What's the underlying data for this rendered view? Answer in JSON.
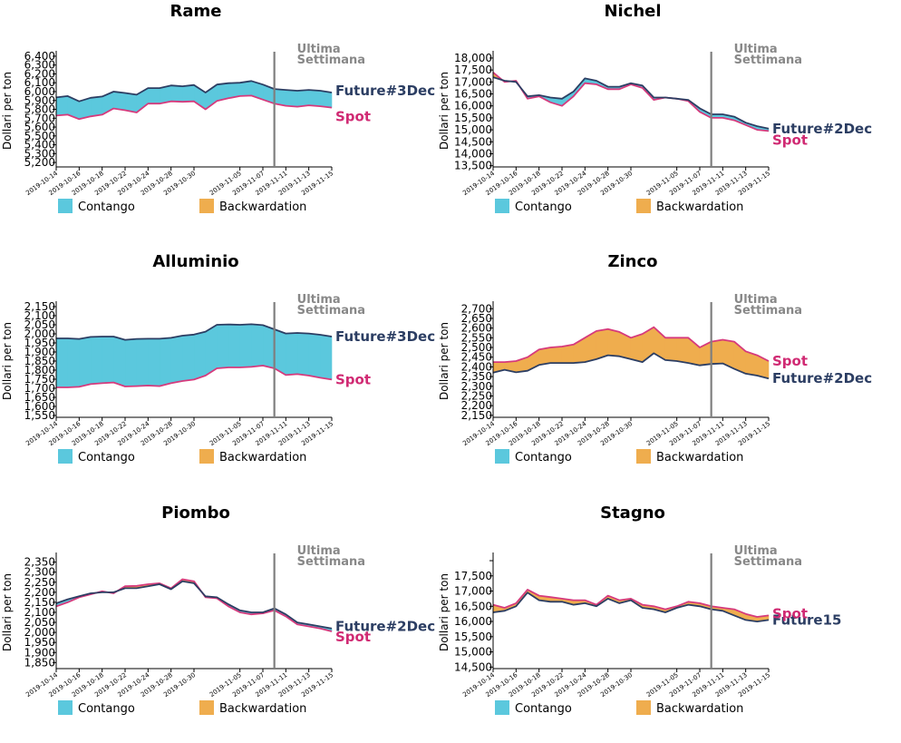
{
  "colors": {
    "contango": "#5bc8dd",
    "backwardation": "#efad4e",
    "future_line": "#2c3e63",
    "spot_line": "#d63a7c",
    "future_label": "#2c3e63",
    "spot_label": "#d02a73",
    "marker": "#7f7f7f",
    "annotation": "#888888"
  },
  "legend": {
    "contango": "Contango",
    "backwardation": "Backwardation"
  },
  "annotation": {
    "line1": "Ultima",
    "line2": "Settimana"
  },
  "chart_data": [
    {
      "type": "area",
      "title": "Rame",
      "ylabel": "Dollari per ton",
      "ylim": [
        5150,
        6420
      ],
      "yticks": [
        5200,
        5300,
        5400,
        5500,
        5600,
        5700,
        5800,
        5900,
        6000,
        6100,
        6200,
        6300,
        6400
      ],
      "ytick_labels": [
        "5,200",
        "5,300",
        "5,400",
        "5,500",
        "5,600",
        "5,700",
        "5,800",
        "5,900",
        "6,000",
        "6,100",
        "6,200",
        "6,300",
        "6,400"
      ],
      "x": [
        "2019-10-14",
        "2019-10-15",
        "2019-10-16",
        "2019-10-17",
        "2019-10-18",
        "2019-10-21",
        "2019-10-22",
        "2019-10-23",
        "2019-10-24",
        "2019-10-25",
        "2019-10-28",
        "2019-10-29",
        "2019-10-30",
        "2019-10-31",
        "2019-11-01",
        "2019-11-04",
        "2019-11-05",
        "2019-11-06",
        "2019-11-07",
        "2019-11-08",
        "2019-11-11",
        "2019-11-12",
        "2019-11-13",
        "2019-11-14",
        "2019-11-15"
      ],
      "xtick_labels": [
        "2019-10-14",
        "2019-10-16",
        "2019-10-18",
        "2019-10-22",
        "2019-10-24",
        "2019-10-28",
        "2019-10-30",
        "2019-11-05",
        "2019-11-07",
        "2019-11-11",
        "2019-11-13",
        "2019-11-15"
      ],
      "marker_x": "2019-11-08",
      "series": [
        {
          "name": "Future#3Dec",
          "role": "future",
          "values": [
            5935,
            5950,
            5890,
            5930,
            5945,
            6000,
            5985,
            5965,
            6040,
            6040,
            6070,
            6060,
            6075,
            5990,
            6080,
            6095,
            6100,
            6120,
            6080,
            6030,
            6020,
            6010,
            6020,
            6010,
            5990
          ]
        },
        {
          "name": "Spot",
          "role": "spot",
          "values": [
            5730,
            5740,
            5690,
            5720,
            5740,
            5810,
            5790,
            5765,
            5865,
            5865,
            5890,
            5885,
            5890,
            5800,
            5895,
            5925,
            5950,
            5955,
            5910,
            5865,
            5840,
            5830,
            5845,
            5835,
            5820
          ]
        }
      ]
    },
    {
      "type": "area",
      "title": "Nichel",
      "ylabel": "Dollari per ton",
      "ylim": [
        13450,
        18150
      ],
      "yticks": [
        13500,
        14000,
        14500,
        15000,
        15500,
        16000,
        16500,
        17000,
        17500,
        18000
      ],
      "ytick_labels": [
        "13,500",
        "14,000",
        "14,500",
        "15,000",
        "15,500",
        "16,000",
        "16,500",
        "17,000",
        "17,500",
        "18,000"
      ],
      "x": [
        "2019-10-14",
        "2019-10-15",
        "2019-10-16",
        "2019-10-17",
        "2019-10-18",
        "2019-10-21",
        "2019-10-22",
        "2019-10-23",
        "2019-10-24",
        "2019-10-25",
        "2019-10-28",
        "2019-10-29",
        "2019-10-30",
        "2019-10-31",
        "2019-11-01",
        "2019-11-04",
        "2019-11-05",
        "2019-11-06",
        "2019-11-07",
        "2019-11-08",
        "2019-11-11",
        "2019-11-12",
        "2019-11-13",
        "2019-11-14",
        "2019-11-15"
      ],
      "xtick_labels": [
        "2019-10-14",
        "2019-10-16",
        "2019-10-18",
        "2019-10-22",
        "2019-10-24",
        "2019-10-28",
        "2019-10-30",
        "2019-11-05",
        "2019-11-07",
        "2019-11-11",
        "2019-11-13",
        "2019-11-15"
      ],
      "marker_x": "2019-11-08",
      "series": [
        {
          "name": "Future#2Dec",
          "role": "future",
          "values": [
            17200,
            17050,
            17000,
            16400,
            16450,
            16350,
            16300,
            16600,
            17150,
            17050,
            16800,
            16800,
            16950,
            16850,
            16350,
            16350,
            16300,
            16250,
            15900,
            15650,
            15650,
            15550,
            15300,
            15150,
            15050
          ]
        },
        {
          "name": "Spot",
          "role": "spot",
          "values": [
            17400,
            17000,
            17050,
            16300,
            16400,
            16150,
            16000,
            16400,
            16950,
            16900,
            16700,
            16700,
            16900,
            16750,
            16250,
            16350,
            16300,
            16200,
            15750,
            15500,
            15500,
            15400,
            15200,
            15000,
            14950
          ]
        }
      ]
    },
    {
      "type": "area",
      "title": "Alluminio",
      "ylabel": "Dollari per ton",
      "ylim": [
        1540,
        2160
      ],
      "yticks": [
        1550,
        1600,
        1650,
        1700,
        1750,
        1800,
        1850,
        1900,
        1950,
        2000,
        2050,
        2100,
        2150
      ],
      "ytick_labels": [
        "1,550",
        "1,600",
        "1,650",
        "1,700",
        "1,750",
        "1,800",
        "1,850",
        "1,900",
        "1,950",
        "2,000",
        "2,050",
        "2,100",
        "2,150"
      ],
      "x": [
        "2019-10-14",
        "2019-10-15",
        "2019-10-16",
        "2019-10-17",
        "2019-10-18",
        "2019-10-21",
        "2019-10-22",
        "2019-10-23",
        "2019-10-24",
        "2019-10-25",
        "2019-10-28",
        "2019-10-29",
        "2019-10-30",
        "2019-10-31",
        "2019-11-01",
        "2019-11-04",
        "2019-11-05",
        "2019-11-06",
        "2019-11-07",
        "2019-11-08",
        "2019-11-11",
        "2019-11-12",
        "2019-11-13",
        "2019-11-14",
        "2019-11-15"
      ],
      "xtick_labels": [
        "2019-10-14",
        "2019-10-16",
        "2019-10-18",
        "2019-10-22",
        "2019-10-24",
        "2019-10-28",
        "2019-10-30",
        "2019-11-05",
        "2019-11-07",
        "2019-11-11",
        "2019-11-13",
        "2019-11-15"
      ],
      "marker_x": "2019-11-08",
      "series": [
        {
          "name": "Future#3Dec",
          "role": "future",
          "values": [
            1975,
            1975,
            1972,
            1983,
            1985,
            1985,
            1967,
            1972,
            1973,
            1973,
            1978,
            1990,
            1996,
            2012,
            2050,
            2052,
            2050,
            2053,
            2048,
            2025,
            2002,
            2005,
            2002,
            1995,
            1985
          ]
        },
        {
          "name": "Spot",
          "role": "spot",
          "values": [
            1705,
            1705,
            1708,
            1723,
            1728,
            1732,
            1710,
            1712,
            1715,
            1712,
            1728,
            1740,
            1748,
            1770,
            1810,
            1815,
            1815,
            1818,
            1825,
            1810,
            1773,
            1778,
            1770,
            1758,
            1748
          ]
        }
      ]
    },
    {
      "type": "area",
      "title": "Zinco",
      "ylabel": "Dollari per ton",
      "ylim": [
        2140,
        2720
      ],
      "yticks": [
        2150,
        2200,
        2250,
        2300,
        2350,
        2400,
        2450,
        2500,
        2550,
        2600,
        2650,
        2700
      ],
      "ytick_labels": [
        "2,150",
        "2,200",
        "2,250",
        "2,300",
        "2,350",
        "2,400",
        "2,450",
        "2,500",
        "2,550",
        "2,600",
        "2,650",
        "2,700"
      ],
      "x": [
        "2019-10-14",
        "2019-10-15",
        "2019-10-16",
        "2019-10-17",
        "2019-10-18",
        "2019-10-21",
        "2019-10-22",
        "2019-10-23",
        "2019-10-24",
        "2019-10-25",
        "2019-10-28",
        "2019-10-29",
        "2019-10-30",
        "2019-10-31",
        "2019-11-01",
        "2019-11-04",
        "2019-11-05",
        "2019-11-06",
        "2019-11-07",
        "2019-11-08",
        "2019-11-11",
        "2019-11-12",
        "2019-11-13",
        "2019-11-14",
        "2019-11-15"
      ],
      "xtick_labels": [
        "2019-10-14",
        "2019-10-16",
        "2019-10-18",
        "2019-10-22",
        "2019-10-24",
        "2019-10-28",
        "2019-10-30",
        "2019-11-05",
        "2019-11-07",
        "2019-11-11",
        "2019-11-13",
        "2019-11-15"
      ],
      "marker_x": "2019-11-08",
      "series": [
        {
          "name": "Future#2Dec",
          "role": "future",
          "values": [
            2370,
            2385,
            2372,
            2380,
            2410,
            2420,
            2420,
            2420,
            2425,
            2440,
            2460,
            2455,
            2440,
            2425,
            2470,
            2435,
            2430,
            2420,
            2408,
            2415,
            2418,
            2390,
            2365,
            2355,
            2340
          ]
        },
        {
          "name": "Spot",
          "role": "spot",
          "values": [
            2425,
            2425,
            2430,
            2450,
            2490,
            2500,
            2505,
            2515,
            2550,
            2585,
            2595,
            2580,
            2550,
            2570,
            2605,
            2550,
            2550,
            2550,
            2500,
            2530,
            2540,
            2530,
            2480,
            2460,
            2430
          ]
        }
      ]
    },
    {
      "type": "area",
      "title": "Piombo",
      "ylabel": "Dollari per ton",
      "ylim": [
        1820,
        2380
      ],
      "yticks": [
        1850,
        1900,
        1950,
        2000,
        2050,
        2100,
        2150,
        2200,
        2250,
        2300,
        2350
      ],
      "ytick_labels": [
        "1,850",
        "1,900",
        "1,950",
        "2,000",
        "2,050",
        "2,100",
        "2,150",
        "2,200",
        "2,250",
        "2,300",
        "2,350"
      ],
      "x": [
        "2019-10-14",
        "2019-10-15",
        "2019-10-16",
        "2019-10-17",
        "2019-10-18",
        "2019-10-21",
        "2019-10-22",
        "2019-10-23",
        "2019-10-24",
        "2019-10-25",
        "2019-10-28",
        "2019-10-29",
        "2019-10-30",
        "2019-10-31",
        "2019-11-01",
        "2019-11-04",
        "2019-11-05",
        "2019-11-06",
        "2019-11-07",
        "2019-11-08",
        "2019-11-11",
        "2019-11-12",
        "2019-11-13",
        "2019-11-14",
        "2019-11-15"
      ],
      "xtick_labels": [
        "2019-10-14",
        "2019-10-16",
        "2019-10-18",
        "2019-10-22",
        "2019-10-24",
        "2019-10-28",
        "2019-10-30",
        "2019-11-05",
        "2019-11-07",
        "2019-11-11",
        "2019-11-13",
        "2019-11-15"
      ],
      "marker_x": "2019-11-08",
      "series": [
        {
          "name": "Future#2Dec",
          "role": "future",
          "values": [
            2145,
            2165,
            2180,
            2195,
            2200,
            2200,
            2220,
            2220,
            2230,
            2240,
            2215,
            2255,
            2245,
            2180,
            2175,
            2140,
            2110,
            2100,
            2100,
            2120,
            2090,
            2050,
            2040,
            2030,
            2020
          ]
        },
        {
          "name": "Spot",
          "role": "spot",
          "values": [
            2130,
            2150,
            2175,
            2190,
            2205,
            2195,
            2230,
            2232,
            2240,
            2245,
            2220,
            2265,
            2255,
            2175,
            2170,
            2130,
            2100,
            2090,
            2095,
            2110,
            2080,
            2040,
            2030,
            2020,
            2005
          ]
        }
      ]
    },
    {
      "type": "area",
      "title": "Stagno",
      "ylabel": "Dollari per ton",
      "ylim": [
        14450,
        18150
      ],
      "yticks": [
        14500,
        15000,
        15500,
        16000,
        16500,
        17000,
        17500,
        18000
      ],
      "ytick_labels": [
        "14,500",
        "15,000",
        "15,500",
        "16,000",
        "16,500",
        "17,000",
        "17,500",
        ""
      ],
      "x": [
        "2019-10-14",
        "2019-10-15",
        "2019-10-16",
        "2019-10-17",
        "2019-10-18",
        "2019-10-21",
        "2019-10-22",
        "2019-10-23",
        "2019-10-24",
        "2019-10-25",
        "2019-10-28",
        "2019-10-29",
        "2019-10-30",
        "2019-10-31",
        "2019-11-01",
        "2019-11-04",
        "2019-11-05",
        "2019-11-06",
        "2019-11-07",
        "2019-11-08",
        "2019-11-11",
        "2019-11-12",
        "2019-11-13",
        "2019-11-14",
        "2019-11-15"
      ],
      "xtick_labels": [
        "2019-10-14",
        "2019-10-16",
        "2019-10-18",
        "2019-10-22",
        "2019-10-24",
        "2019-10-28",
        "2019-10-30",
        "2019-11-05",
        "2019-11-07",
        "2019-11-11",
        "2019-11-13",
        "2019-11-15"
      ],
      "marker_x": "2019-11-08",
      "series": [
        {
          "name": "Future15",
          "role": "future",
          "values": [
            16300,
            16350,
            16500,
            16950,
            16700,
            16650,
            16650,
            16550,
            16600,
            16500,
            16750,
            16600,
            16700,
            16450,
            16400,
            16300,
            16450,
            16550,
            16500,
            16400,
            16350,
            16200,
            16050,
            16000,
            16050
          ]
        },
        {
          "name": "Spot",
          "role": "spot",
          "values": [
            16550,
            16450,
            16600,
            17050,
            16850,
            16800,
            16750,
            16700,
            16700,
            16550,
            16850,
            16700,
            16750,
            16550,
            16500,
            16400,
            16500,
            16650,
            16600,
            16500,
            16450,
            16400,
            16250,
            16150,
            16200
          ]
        }
      ]
    }
  ]
}
